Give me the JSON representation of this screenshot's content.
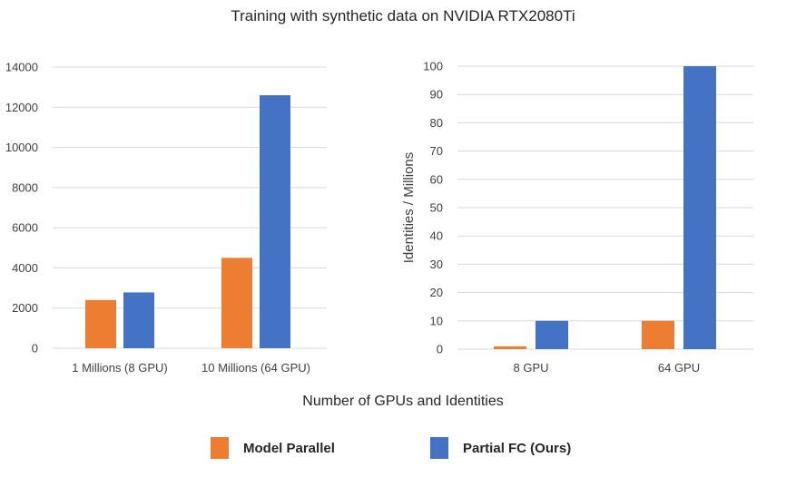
{
  "figure": {
    "title": "Training with synthetic data on NVIDIA RTX2080Ti",
    "xlabel": "Number of GPUs and Identities"
  },
  "colors": {
    "model_parallel": "#ED7D31",
    "partial_fc": "#4472C4",
    "grid": "#D9D9D9"
  },
  "legend": [
    {
      "label": "Model Parallel",
      "color": "#ED7D31"
    },
    {
      "label": "Partial FC (Ours)",
      "color": "#4472C4"
    }
  ],
  "chart_data": [
    {
      "type": "bar",
      "title": "",
      "xlabel": "",
      "ylabel": "",
      "categories": [
        "1 Millions (8 GPU)",
        "10 Millions (64 GPU)"
      ],
      "series": [
        {
          "name": "Model Parallel",
          "values": [
            2400,
            4500
          ]
        },
        {
          "name": "Partial FC (Ours)",
          "values": [
            2780,
            12600
          ]
        }
      ],
      "ylim": [
        0,
        14000
      ],
      "yticks": [
        "0",
        "2000",
        "4000",
        "6000",
        "8000",
        "10000",
        "12000",
        "14000"
      ],
      "grid": true
    },
    {
      "type": "bar",
      "title": "",
      "xlabel": "",
      "ylabel": "Identities / Millions",
      "categories": [
        "8 GPU",
        "64 GPU"
      ],
      "series": [
        {
          "name": "Model Parallel",
          "values": [
            1,
            10
          ]
        },
        {
          "name": "Partial FC (Ours)",
          "values": [
            10,
            100
          ]
        }
      ],
      "ylim": [
        0,
        100
      ],
      "yticks": [
        "0",
        "10",
        "20",
        "30",
        "40",
        "50",
        "60",
        "70",
        "80",
        "90",
        "100"
      ],
      "grid": true
    }
  ]
}
